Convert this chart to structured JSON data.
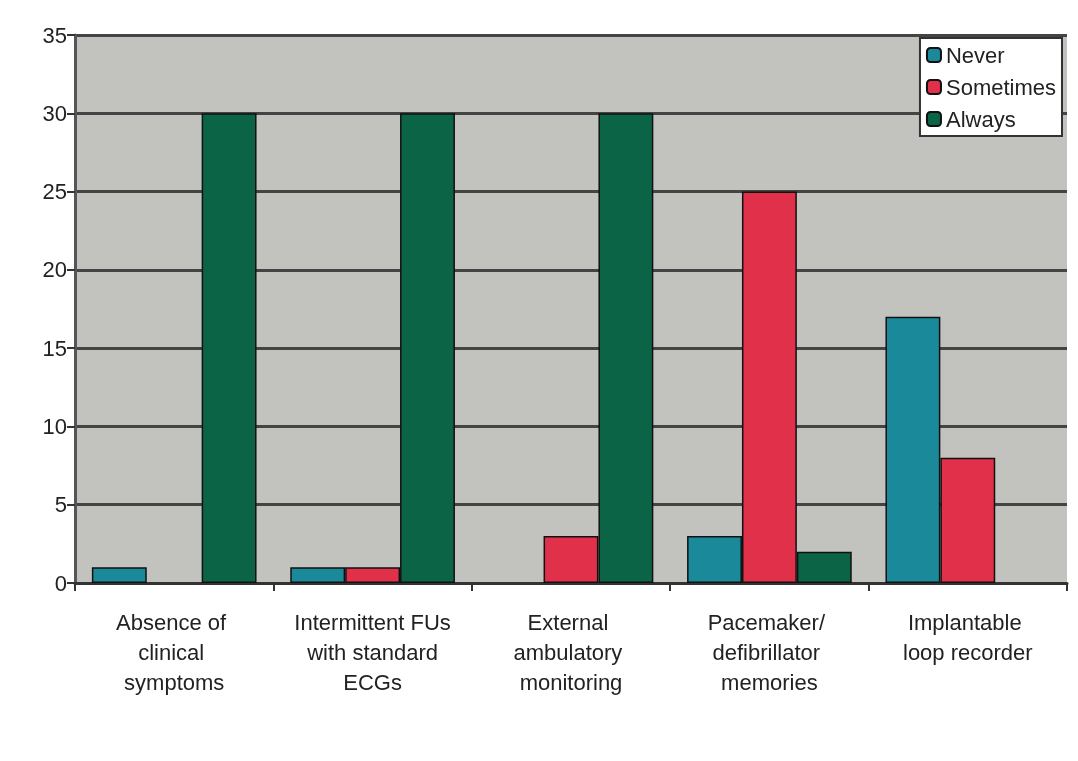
{
  "chart_data": {
    "type": "bar",
    "categories": [
      "Absence of clinical symptoms",
      "Intermittent FUs with standard ECGs",
      "External ambulatory monitoring",
      "Pacemaker/ defibrillator memories",
      "Implantable loop recorder"
    ],
    "series": [
      {
        "name": "Never",
        "color": "#1a8a9a",
        "values": [
          1,
          1,
          0,
          3,
          17
        ]
      },
      {
        "name": "Sometimes",
        "color": "#e0304a",
        "values": [
          0,
          1,
          3,
          25,
          8
        ]
      },
      {
        "name": "Always",
        "color": "#0b6446",
        "values": [
          30,
          30,
          30,
          2,
          0
        ]
      }
    ],
    "ylim": [
      0,
      35
    ],
    "yticks": [
      0,
      5,
      10,
      15,
      20,
      25,
      30,
      35
    ],
    "grid": "y",
    "legend": "top right"
  }
}
